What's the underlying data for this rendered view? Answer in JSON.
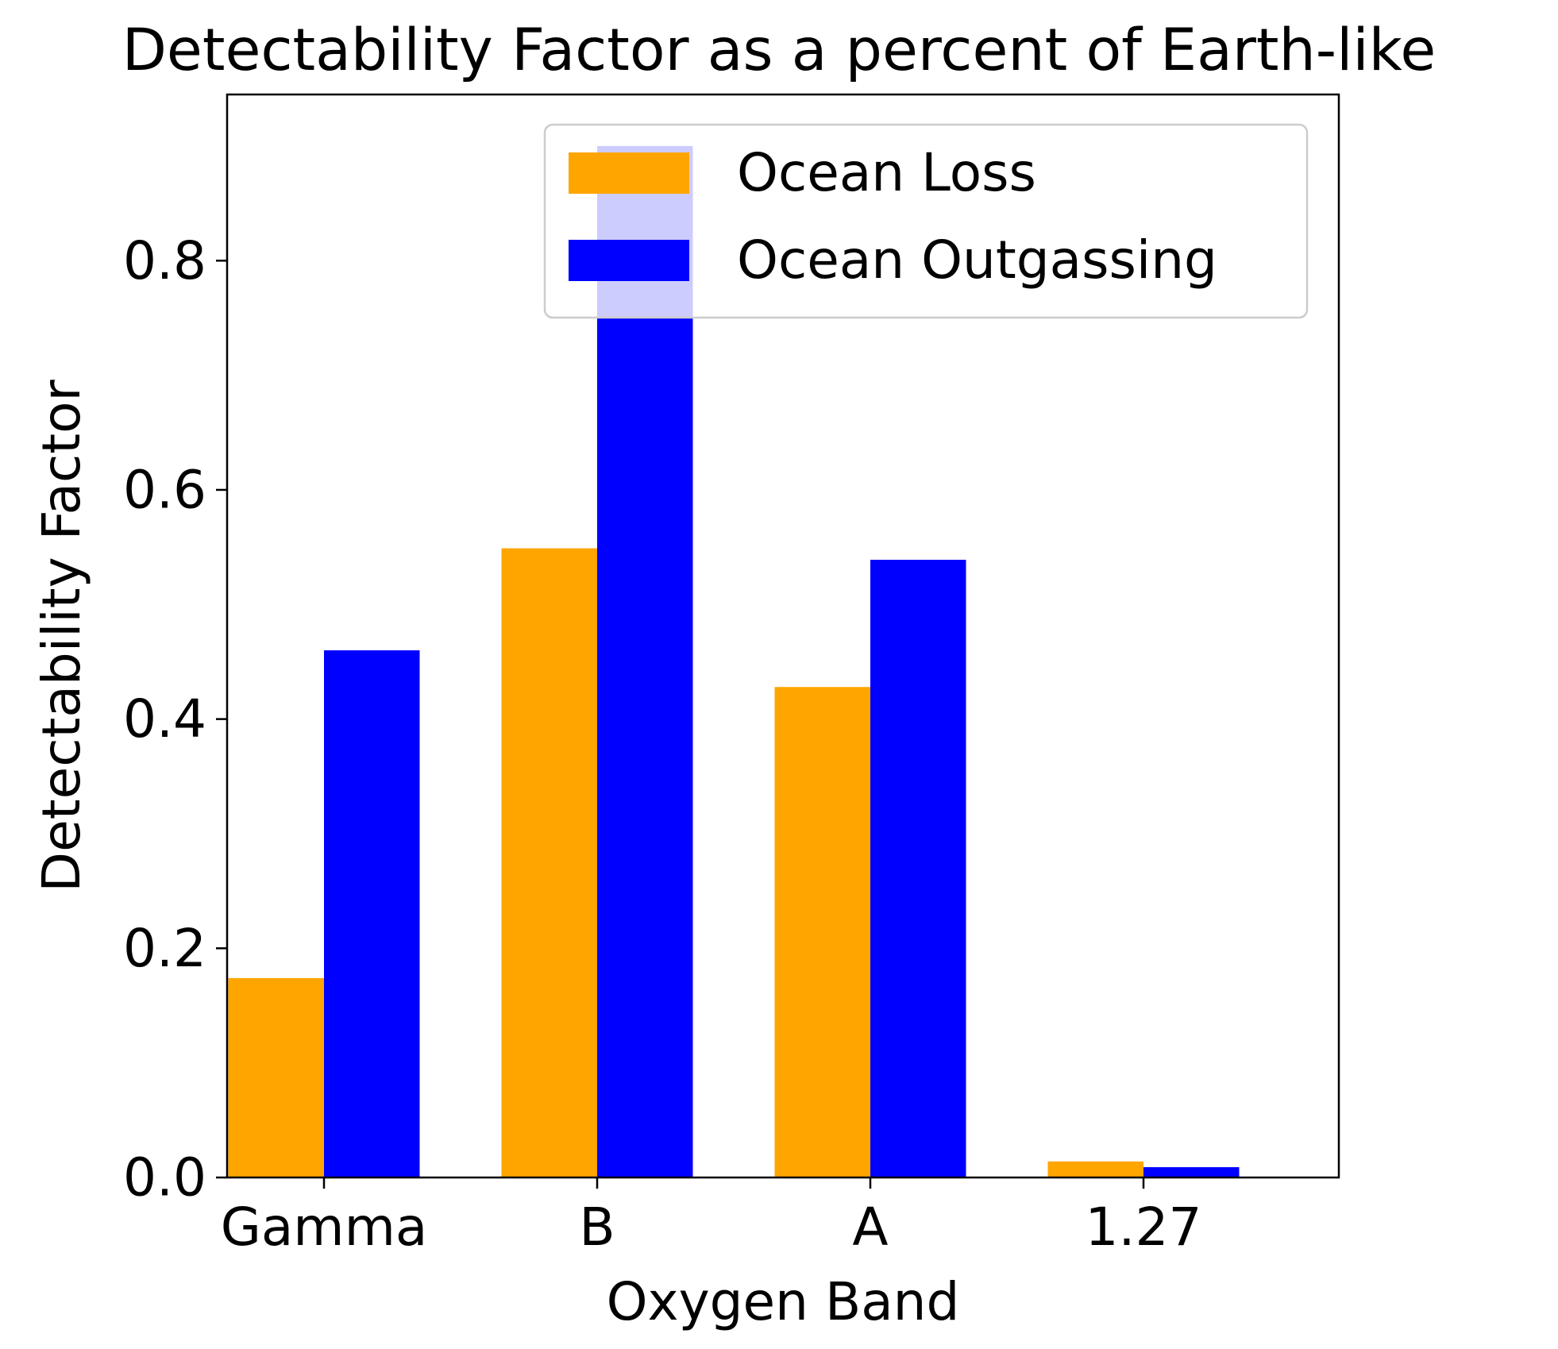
{
  "chart_data": {
    "type": "bar",
    "title": "Detectability Factor as a percent of Earth-like",
    "xlabel": "Oxygen Band",
    "ylabel": "Detectability Factor",
    "categories": [
      "Gamma",
      "B",
      "A",
      "1.27"
    ],
    "series": [
      {
        "name": "Ocean Loss",
        "color": "#ffa500",
        "values": [
          0.174,
          0.549,
          0.428,
          0.014
        ]
      },
      {
        "name": "Ocean Outgassing",
        "color": "#0000ff",
        "values": [
          0.46,
          0.9,
          0.539,
          0.009
        ]
      }
    ],
    "ylim": [
      0,
      0.945
    ],
    "yticks": [
      0.0,
      0.2,
      0.4,
      0.6,
      0.8
    ],
    "ytick_labels": [
      "0.0",
      "0.2",
      "0.4",
      "0.6",
      "0.8"
    ],
    "grid": false,
    "legend_position": "top-right"
  }
}
